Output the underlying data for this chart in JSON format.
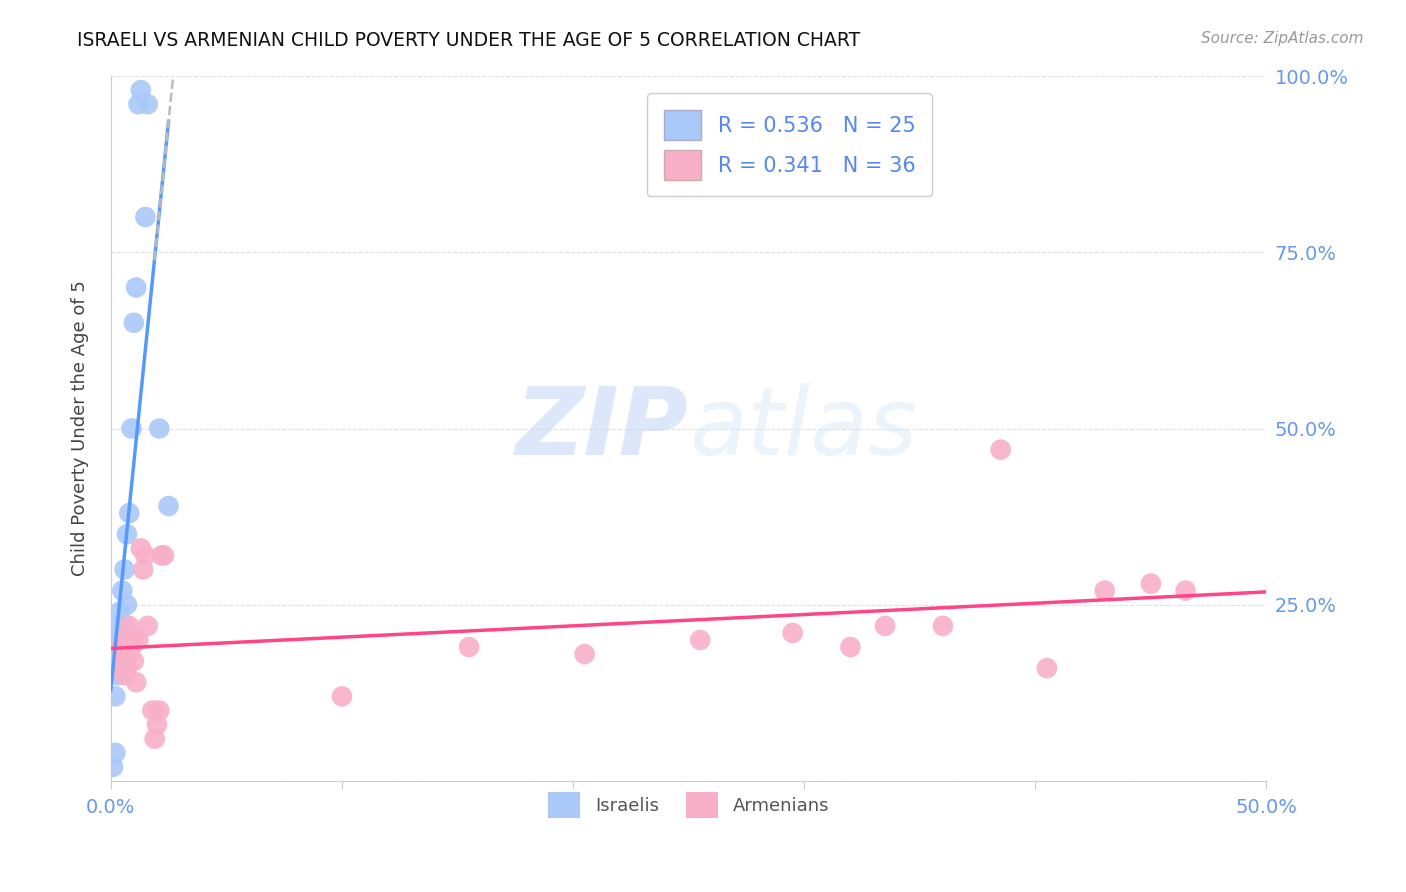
{
  "title": "ISRAELI VS ARMENIAN CHILD POVERTY UNDER THE AGE OF 5 CORRELATION CHART",
  "source": "Source: ZipAtlas.com",
  "ylabel": "Child Poverty Under the Age of 5",
  "xlim": [
    0.0,
    0.5
  ],
  "ylim": [
    0.0,
    1.0
  ],
  "background_color": "#ffffff",
  "grid_color": "#e0e0e0",
  "watermark_text": "ZIPatlas",
  "israelis_color": "#aac8f8",
  "armenians_color": "#f8b0c8",
  "israeli_line_color": "#5599ff",
  "armenian_line_color": "#ff4488",
  "legend_R_israeli": "R = 0.536",
  "legend_N_israeli": "N = 25",
  "legend_R_armenian": "R = 0.341",
  "legend_N_armenian": "N = 36",
  "israelis_x": [
    0.001,
    0.002,
    0.002,
    0.003,
    0.003,
    0.003,
    0.004,
    0.004,
    0.004,
    0.005,
    0.005,
    0.006,
    0.006,
    0.007,
    0.007,
    0.008,
    0.009,
    0.01,
    0.011,
    0.012,
    0.013,
    0.015,
    0.016,
    0.021,
    0.025
  ],
  "israelis_y": [
    0.02,
    0.04,
    0.12,
    0.15,
    0.17,
    0.2,
    0.18,
    0.22,
    0.24,
    0.2,
    0.27,
    0.22,
    0.3,
    0.25,
    0.35,
    0.38,
    0.5,
    0.65,
    0.7,
    0.96,
    0.98,
    0.8,
    0.96,
    0.5,
    0.39
  ],
  "armenians_x": [
    0.003,
    0.004,
    0.005,
    0.006,
    0.006,
    0.007,
    0.008,
    0.008,
    0.009,
    0.01,
    0.01,
    0.011,
    0.012,
    0.013,
    0.014,
    0.015,
    0.016,
    0.018,
    0.019,
    0.02,
    0.021,
    0.022,
    0.023,
    0.1,
    0.155,
    0.205,
    0.255,
    0.295,
    0.32,
    0.335,
    0.36,
    0.385,
    0.405,
    0.43,
    0.45,
    0.465
  ],
  "armenians_y": [
    0.17,
    0.19,
    0.18,
    0.15,
    0.2,
    0.16,
    0.18,
    0.22,
    0.19,
    0.17,
    0.2,
    0.14,
    0.2,
    0.33,
    0.3,
    0.32,
    0.22,
    0.1,
    0.06,
    0.08,
    0.1,
    0.32,
    0.32,
    0.12,
    0.19,
    0.18,
    0.2,
    0.21,
    0.19,
    0.22,
    0.22,
    0.47,
    0.16,
    0.27,
    0.28,
    0.27
  ]
}
